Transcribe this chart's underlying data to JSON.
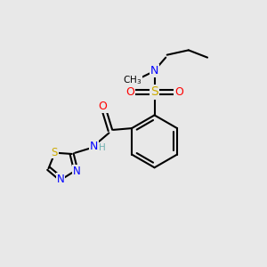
{
  "bg_color": "#e8e8e8",
  "bond_color": "#000000",
  "bond_width": 1.5,
  "colors": {
    "N": "#0000ff",
    "O": "#ff0000",
    "S_sul": "#ccaa00",
    "S_thia": "#ccaa00",
    "H": "#70b0b0"
  },
  "font_size": 9
}
